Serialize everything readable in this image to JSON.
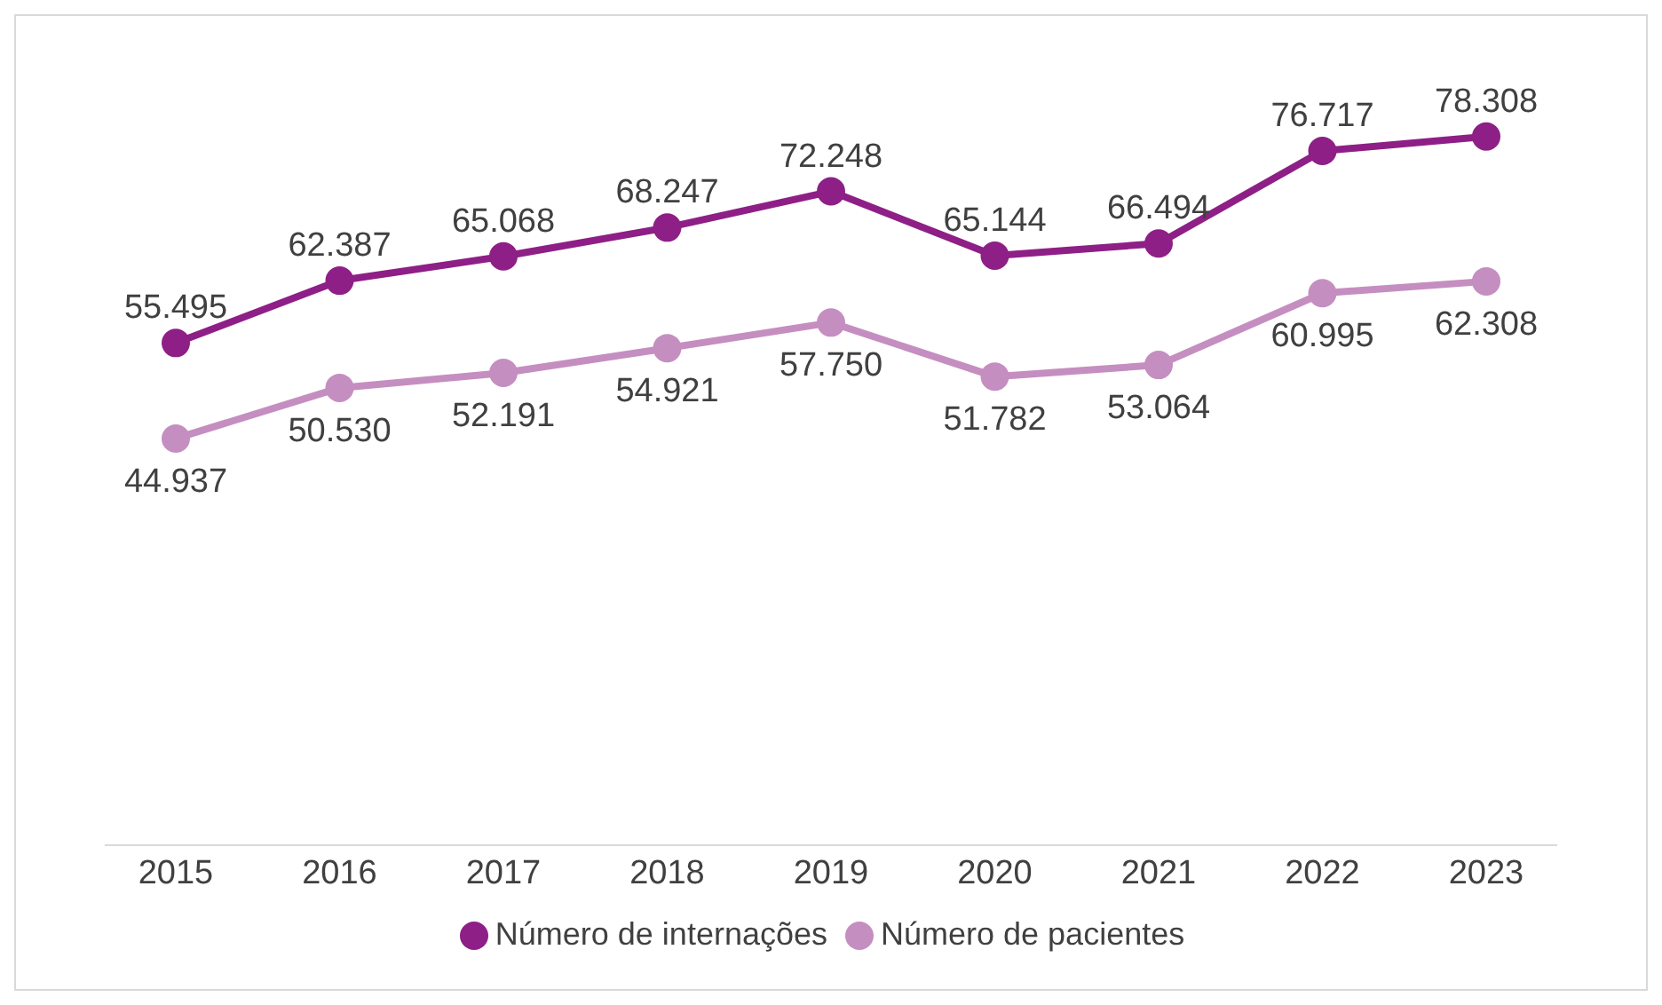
{
  "chart_data": {
    "type": "line",
    "categories": [
      "2015",
      "2016",
      "2017",
      "2018",
      "2019",
      "2020",
      "2021",
      "2022",
      "2023"
    ],
    "series": [
      {
        "name": "Número de internações",
        "color": "#8e1f86",
        "values": [
          55495,
          62387,
          65068,
          68247,
          72248,
          65144,
          66494,
          76717,
          78308
        ],
        "value_labels": [
          "55.495",
          "62.387",
          "65.068",
          "68.247",
          "72.248",
          "65.144",
          "66.494",
          "76.717",
          "78.308"
        ]
      },
      {
        "name": "Número de pacientes",
        "color": "#c58ec0",
        "values": [
          44937,
          50530,
          52191,
          54921,
          57750,
          51782,
          53064,
          60995,
          62308
        ],
        "value_labels": [
          "44.937",
          "50.530",
          "52.191",
          "54.921",
          "57.750",
          "51.782",
          "53.064",
          "60.995",
          "62.308"
        ]
      }
    ],
    "grid": false,
    "legend": "bottom",
    "marker": "circle",
    "line_style": "solid"
  }
}
